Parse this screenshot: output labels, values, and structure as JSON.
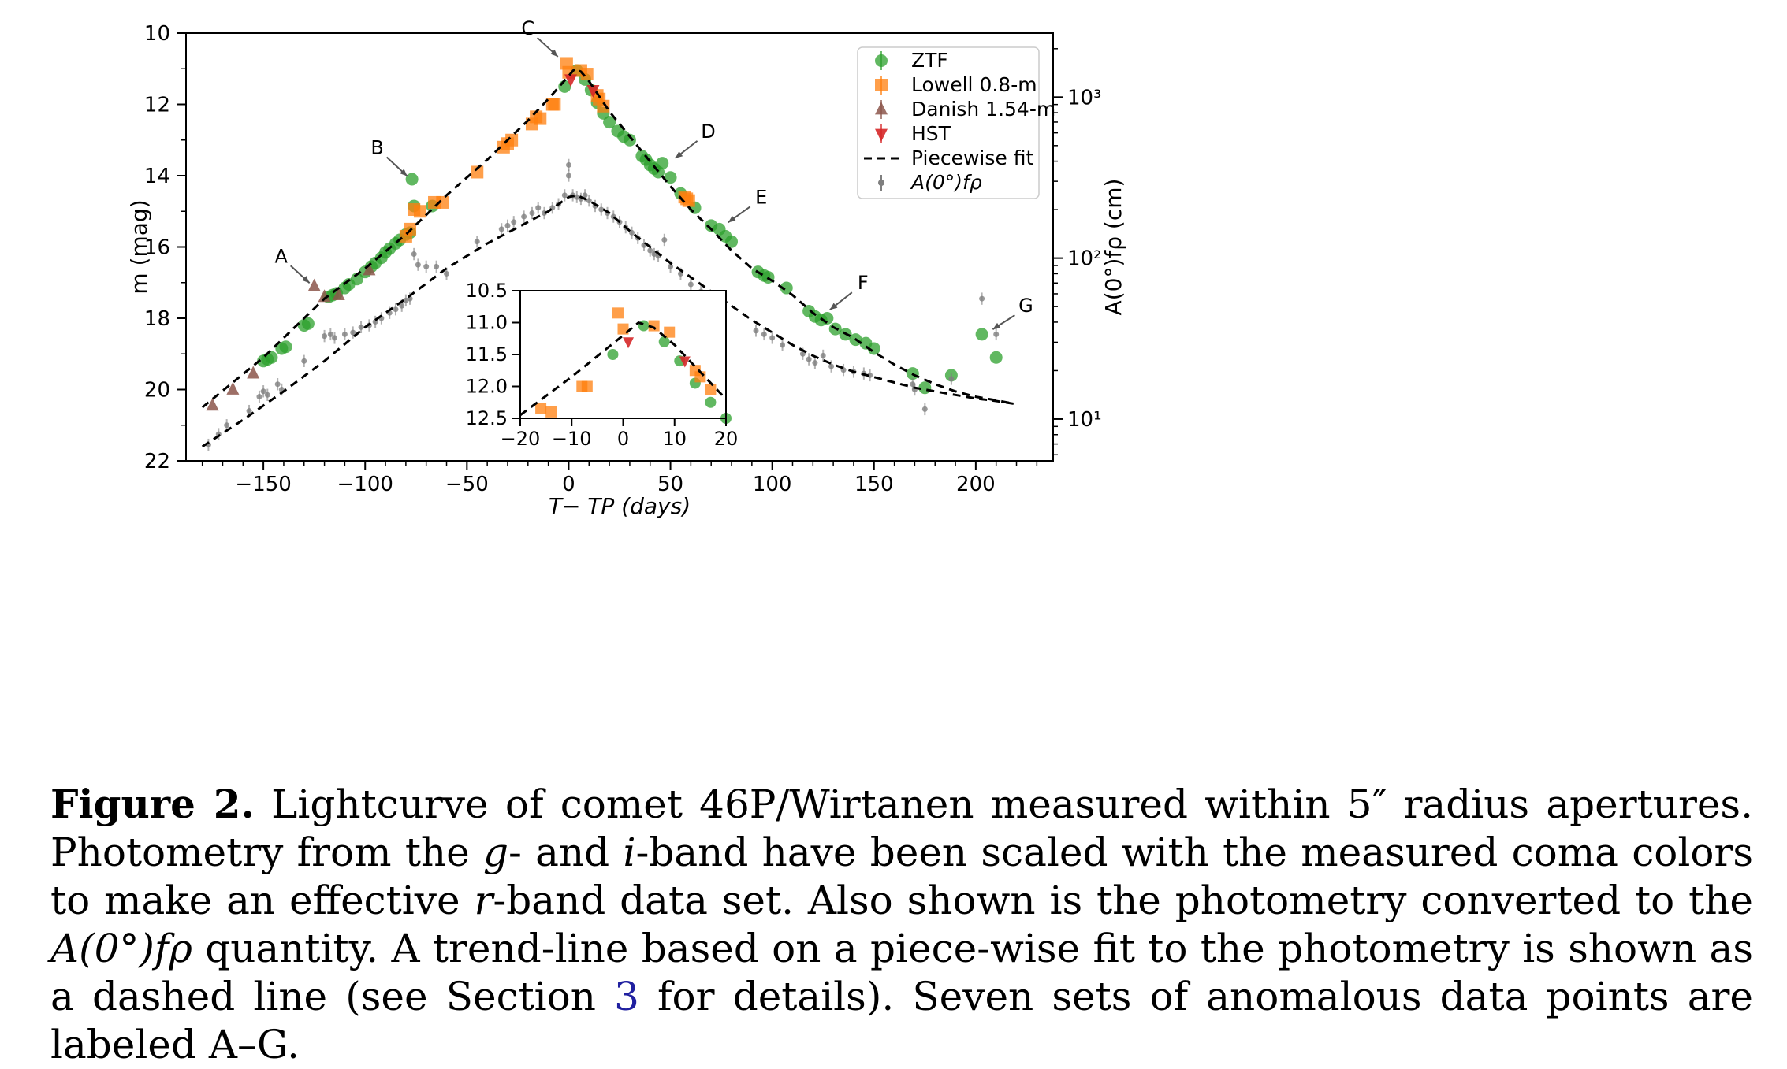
{
  "chart_data": {
    "type": "scatter",
    "xlabel": "T− T_P (days)",
    "ylabel": "m (mag)",
    "ylabel_right": "A(0°)fρ (cm)",
    "xlim": [
      -188,
      238
    ],
    "ylim": [
      22,
      10
    ],
    "y_inverted": true,
    "x_ticks": [
      -150,
      -100,
      -50,
      0,
      50,
      100,
      150,
      200
    ],
    "x_tick_labels": [
      "−150",
      "−100",
      "−50",
      "0",
      "50",
      "100",
      "150",
      "200"
    ],
    "y_ticks": [
      10,
      12,
      14,
      16,
      18,
      20,
      22
    ],
    "y_tick_labels": [
      "10",
      "12",
      "14",
      "16",
      "18",
      "20",
      "22"
    ],
    "right_axis": {
      "scale": "log",
      "ticks": [
        10,
        100,
        1000
      ],
      "tick_labels": [
        "10¹",
        "10²",
        "10³"
      ],
      "ylim": [
        5.5,
        2500
      ]
    },
    "legend_position": "top-right",
    "legend": [
      {
        "label": "ZTF",
        "marker": "circle",
        "color": "#2ca02c"
      },
      {
        "label": "Lowell 0.8-m",
        "marker": "square",
        "color": "#ff7f0e"
      },
      {
        "label": "Danish 1.54-m",
        "marker": "triangle-up",
        "color": "#8c564b"
      },
      {
        "label": "HST",
        "marker": "triangle-down",
        "color": "#d62728"
      },
      {
        "label": "Piecewise fit",
        "marker": "dashed-line",
        "color": "#000000"
      },
      {
        "label": "A(0°)fρ",
        "marker": "errorbar-point",
        "color": "#7f7f7f"
      }
    ],
    "series": [
      {
        "name": "ZTF",
        "color": "#2ca02c",
        "marker": "circle",
        "points": [
          [
            -150,
            19.2
          ],
          [
            -148,
            19.15
          ],
          [
            -146,
            19.1
          ],
          [
            -141,
            18.85
          ],
          [
            -139,
            18.8
          ],
          [
            -130,
            18.2
          ],
          [
            -128,
            18.15
          ],
          [
            -118,
            17.4
          ],
          [
            -116,
            17.35
          ],
          [
            -114,
            17.3
          ],
          [
            -110,
            17.15
          ],
          [
            -108,
            17.05
          ],
          [
            -104,
            16.9
          ],
          [
            -100,
            16.7
          ],
          [
            -97,
            16.55
          ],
          [
            -95,
            16.45
          ],
          [
            -92,
            16.3
          ],
          [
            -90,
            16.15
          ],
          [
            -88,
            16.05
          ],
          [
            -85,
            15.9
          ],
          [
            -83,
            15.8
          ],
          [
            -80,
            15.65
          ],
          [
            -78,
            15.6
          ],
          [
            -77,
            14.1
          ],
          [
            -76,
            14.85
          ],
          [
            -67,
            14.85
          ],
          [
            -2,
            11.5
          ],
          [
            4,
            11.05
          ],
          [
            8,
            11.3
          ],
          [
            11,
            11.6
          ],
          [
            14,
            11.95
          ],
          [
            17,
            12.25
          ],
          [
            20,
            12.5
          ],
          [
            24,
            12.75
          ],
          [
            27,
            12.9
          ],
          [
            30,
            13.0
          ],
          [
            36,
            13.45
          ],
          [
            38,
            13.55
          ],
          [
            40,
            13.7
          ],
          [
            42,
            13.8
          ],
          [
            44,
            13.9
          ],
          [
            46,
            13.65
          ],
          [
            50,
            14.05
          ],
          [
            55,
            14.5
          ],
          [
            62,
            14.9
          ],
          [
            70,
            15.4
          ],
          [
            74,
            15.5
          ],
          [
            77,
            15.7
          ],
          [
            80,
            15.85
          ],
          [
            93,
            16.7
          ],
          [
            96,
            16.8
          ],
          [
            98,
            16.85
          ],
          [
            107,
            17.15
          ],
          [
            118,
            17.8
          ],
          [
            121,
            17.95
          ],
          [
            124,
            18.05
          ],
          [
            127,
            18.0
          ],
          [
            131,
            18.3
          ],
          [
            136,
            18.45
          ],
          [
            141,
            18.6
          ],
          [
            146,
            18.7
          ],
          [
            150,
            18.85
          ],
          [
            169,
            19.55
          ],
          [
            175,
            19.95
          ],
          [
            188,
            19.6
          ],
          [
            203,
            18.45
          ],
          [
            210,
            19.1
          ]
        ]
      },
      {
        "name": "Lowell 0.8-m",
        "color": "#ff7f0e",
        "marker": "square",
        "points": [
          [
            -80,
            15.7
          ],
          [
            -78,
            15.5
          ],
          [
            -76,
            14.95
          ],
          [
            -73,
            15.0
          ],
          [
            -66,
            14.75
          ],
          [
            -62,
            14.75
          ],
          [
            -45,
            13.9
          ],
          [
            -32,
            13.2
          ],
          [
            -30,
            13.1
          ],
          [
            -28,
            13.0
          ],
          [
            -18,
            12.55
          ],
          [
            -16,
            12.35
          ],
          [
            -14,
            12.4
          ],
          [
            -8,
            12.0
          ],
          [
            -7,
            12.0
          ],
          [
            -1,
            10.85
          ],
          [
            0,
            11.1
          ],
          [
            6,
            11.05
          ],
          [
            9,
            11.15
          ],
          [
            14,
            11.75
          ],
          [
            15,
            11.85
          ],
          [
            17,
            12.05
          ],
          [
            57,
            14.6
          ],
          [
            58,
            14.65
          ],
          [
            59,
            14.7
          ]
        ]
      },
      {
        "name": "Danish 1.54-m",
        "color": "#8c564b",
        "marker": "triangle-up",
        "points": [
          [
            -175,
            20.45
          ],
          [
            -165,
            20.0
          ],
          [
            -155,
            19.55
          ],
          [
            -125,
            17.1
          ],
          [
            -120,
            17.4
          ],
          [
            -113,
            17.35
          ],
          [
            -98,
            16.65
          ]
        ]
      },
      {
        "name": "HST",
        "color": "#d62728",
        "marker": "triangle-down",
        "points": [
          [
            1,
            11.3
          ],
          [
            12,
            11.6
          ]
        ]
      },
      {
        "name": "A(0°)fρ",
        "color": "#7f7f7f",
        "marker": "errorbar-point",
        "points": [
          [
            -177,
            21.55
          ],
          [
            -172,
            21.25
          ],
          [
            -168,
            21.0
          ],
          [
            -157,
            20.6
          ],
          [
            -152,
            20.2
          ],
          [
            -150,
            20.05
          ],
          [
            -148,
            20.15
          ],
          [
            -143,
            19.85
          ],
          [
            -141,
            20.0
          ],
          [
            -130,
            19.2
          ],
          [
            -120,
            18.5
          ],
          [
            -117,
            18.45
          ],
          [
            -115,
            18.55
          ],
          [
            -110,
            18.45
          ],
          [
            -106,
            18.4
          ],
          [
            -102,
            18.25
          ],
          [
            -98,
            18.2
          ],
          [
            -95,
            18.1
          ],
          [
            -92,
            18.0
          ],
          [
            -88,
            17.85
          ],
          [
            -85,
            17.75
          ],
          [
            -82,
            17.65
          ],
          [
            -80,
            17.5
          ],
          [
            -78,
            17.45
          ],
          [
            -76,
            16.2
          ],
          [
            -74,
            16.5
          ],
          [
            -70,
            16.55
          ],
          [
            -65,
            16.55
          ],
          [
            -60,
            16.75
          ],
          [
            -45,
            15.85
          ],
          [
            -33,
            15.5
          ],
          [
            -30,
            15.4
          ],
          [
            -27,
            15.3
          ],
          [
            -22,
            15.15
          ],
          [
            -18,
            15.05
          ],
          [
            -15,
            14.9
          ],
          [
            -12,
            15.05
          ],
          [
            -8,
            14.9
          ],
          [
            -5,
            14.8
          ],
          [
            -2,
            14.55
          ],
          [
            0,
            13.7
          ],
          [
            0,
            14.0
          ],
          [
            2,
            14.55
          ],
          [
            4,
            14.6
          ],
          [
            6,
            14.65
          ],
          [
            8,
            14.55
          ],
          [
            10,
            14.7
          ],
          [
            13,
            14.85
          ],
          [
            16,
            14.95
          ],
          [
            19,
            15.05
          ],
          [
            22,
            15.15
          ],
          [
            25,
            15.3
          ],
          [
            28,
            15.45
          ],
          [
            31,
            15.6
          ],
          [
            34,
            15.75
          ],
          [
            37,
            15.95
          ],
          [
            40,
            16.1
          ],
          [
            42,
            16.2
          ],
          [
            44,
            16.25
          ],
          [
            47,
            15.8
          ],
          [
            50,
            16.55
          ],
          [
            55,
            16.75
          ],
          [
            60,
            17.05
          ],
          [
            65,
            17.25
          ],
          [
            70,
            17.45
          ],
          [
            76,
            17.65
          ],
          [
            92,
            18.35
          ],
          [
            96,
            18.45
          ],
          [
            100,
            18.55
          ],
          [
            105,
            18.75
          ],
          [
            115,
            19.0
          ],
          [
            118,
            19.15
          ],
          [
            121,
            19.25
          ],
          [
            125,
            19.05
          ],
          [
            129,
            19.35
          ],
          [
            135,
            19.45
          ],
          [
            140,
            19.5
          ],
          [
            145,
            19.55
          ],
          [
            148,
            19.6
          ],
          [
            169,
            19.85
          ],
          [
            170,
            20.0
          ],
          [
            175,
            20.55
          ],
          [
            188,
            19.7
          ],
          [
            203,
            17.45
          ],
          [
            210,
            18.45
          ]
        ]
      },
      {
        "name": "Piecewise fit",
        "color": "#000000",
        "line_style": "dashed",
        "points": [
          [
            -180,
            20.5
          ],
          [
            -150,
            19.1
          ],
          [
            -120,
            17.45
          ],
          [
            -100,
            16.6
          ],
          [
            -80,
            15.65
          ],
          [
            -60,
            14.55
          ],
          [
            -40,
            13.55
          ],
          [
            -20,
            12.45
          ],
          [
            -10,
            11.85
          ],
          [
            0,
            11.2
          ],
          [
            3,
            11.0
          ],
          [
            6,
            11.08
          ],
          [
            10,
            11.35
          ],
          [
            20,
            12.2
          ],
          [
            30,
            12.9
          ],
          [
            40,
            13.6
          ],
          [
            50,
            14.3
          ],
          [
            60,
            14.95
          ],
          [
            70,
            15.5
          ],
          [
            80,
            16.1
          ],
          [
            90,
            16.6
          ],
          [
            100,
            16.95
          ],
          [
            110,
            17.35
          ],
          [
            120,
            17.85
          ],
          [
            130,
            18.25
          ],
          [
            140,
            18.55
          ],
          [
            150,
            18.95
          ],
          [
            160,
            19.3
          ],
          [
            170,
            19.6
          ],
          [
            180,
            19.85
          ],
          [
            190,
            20.05
          ],
          [
            200,
            20.2
          ],
          [
            210,
            20.3
          ],
          [
            219,
            20.4
          ]
        ]
      },
      {
        "name": "Piecewise fit (A(0°)fρ)",
        "color": "#000000",
        "line_style": "dashed",
        "points": [
          [
            -180,
            21.6
          ],
          [
            -160,
            20.85
          ],
          [
            -140,
            20.05
          ],
          [
            -120,
            19.2
          ],
          [
            -100,
            18.25
          ],
          [
            -80,
            17.45
          ],
          [
            -60,
            16.6
          ],
          [
            -40,
            15.9
          ],
          [
            -20,
            15.3
          ],
          [
            -10,
            15.0
          ],
          [
            0,
            14.6
          ],
          [
            4,
            14.55
          ],
          [
            10,
            14.7
          ],
          [
            20,
            15.05
          ],
          [
            30,
            15.55
          ],
          [
            40,
            16.0
          ],
          [
            50,
            16.45
          ],
          [
            60,
            16.85
          ],
          [
            70,
            17.25
          ],
          [
            80,
            17.65
          ],
          [
            90,
            18.05
          ],
          [
            100,
            18.4
          ],
          [
            110,
            18.75
          ],
          [
            120,
            19.05
          ],
          [
            130,
            19.3
          ],
          [
            140,
            19.5
          ],
          [
            150,
            19.65
          ],
          [
            160,
            19.8
          ],
          [
            170,
            19.95
          ],
          [
            180,
            20.05
          ],
          [
            190,
            20.15
          ],
          [
            200,
            20.25
          ],
          [
            210,
            20.32
          ],
          [
            219,
            20.4
          ]
        ]
      }
    ],
    "annotations": [
      {
        "label": "A",
        "x": -125,
        "y": 17.1
      },
      {
        "label": "B",
        "x": -77,
        "y": 14.1
      },
      {
        "label": "C",
        "x": -3,
        "y": 10.75
      },
      {
        "label": "D",
        "x": 50,
        "y": 13.6
      },
      {
        "label": "E",
        "x": 76,
        "y": 15.4
      },
      {
        "label": "F",
        "x": 126,
        "y": 17.85
      },
      {
        "label": "G",
        "x": 206,
        "y": 18.4
      }
    ],
    "inset": {
      "xlim": [
        -20,
        20
      ],
      "ylim": [
        12.5,
        10.5
      ],
      "x_ticks": [
        -20,
        -10,
        0,
        10,
        20
      ],
      "x_tick_labels": [
        "−20",
        "−10",
        "0",
        "10",
        "20"
      ],
      "y_ticks": [
        10.5,
        11.0,
        11.5,
        12.0,
        12.5
      ],
      "y_tick_labels": [
        "10.5",
        "11.0",
        "11.5",
        "12.0",
        "12.5"
      ]
    }
  },
  "caption": {
    "label": "Figure 2.",
    "text_1": " Lightcurve of comet 46P/Wirtanen measured within 5″ radius apertures. Photometry from the ",
    "g_band": "g",
    "text_2": "- and ",
    "i_band": "i",
    "text_3": "-band have been scaled with the measured coma colors to make an effective ",
    "r_band": "r",
    "text_4": "-band data set. Also shown is the photometry converted to the ",
    "afrho": "A(0°)fρ",
    "text_5": " quantity. A trend-line based on a piece-wise fit to the photometry is shown as a dashed line (see Section ",
    "section_ref": "3",
    "text_6": " for details). Seven sets of anomalous data points are labeled A–G."
  }
}
